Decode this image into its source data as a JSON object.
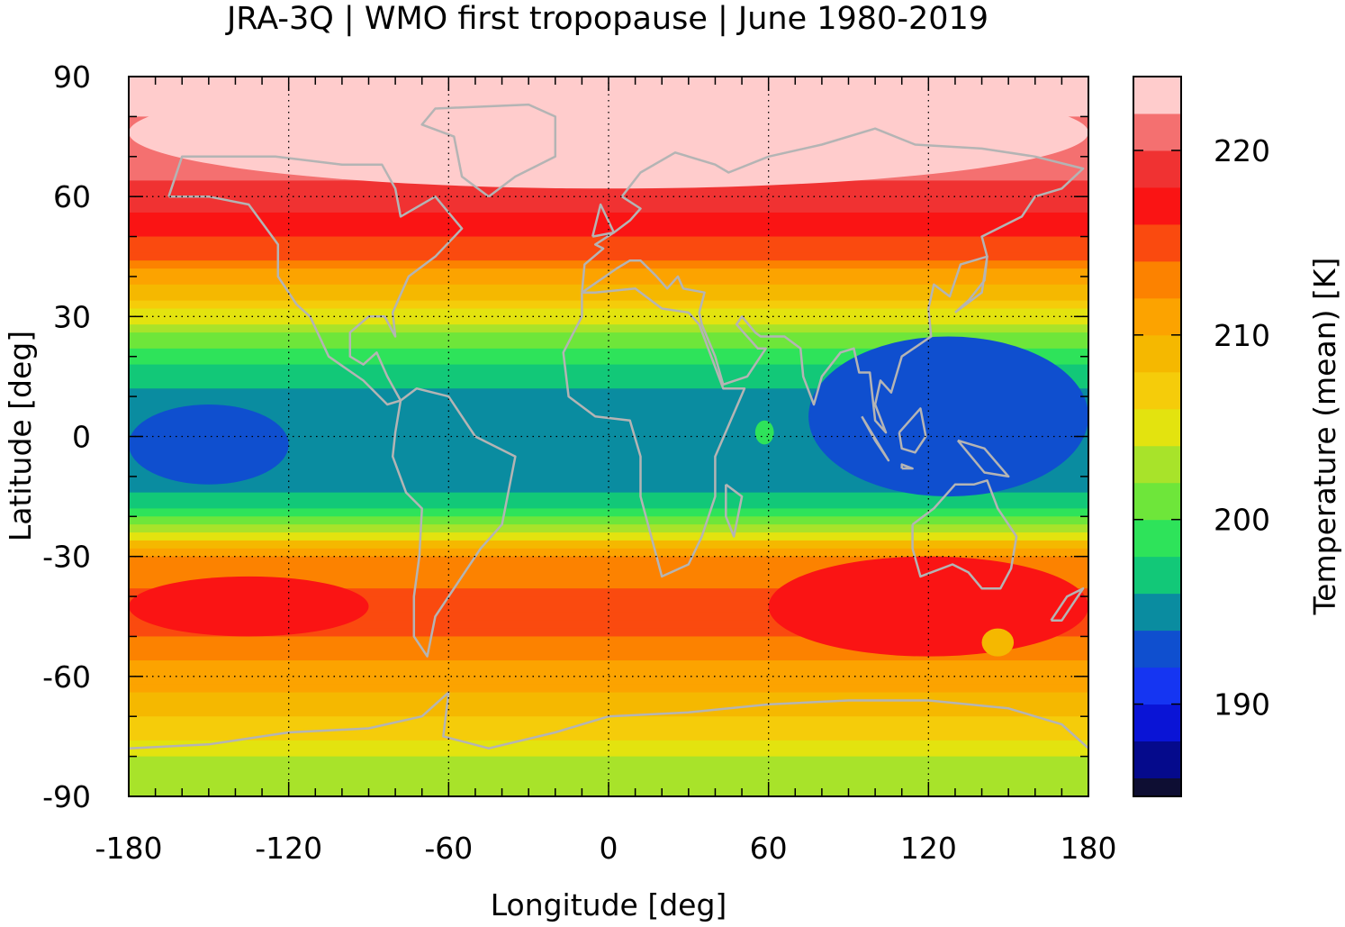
{
  "title": "JRA-3Q | WMO first tropopause | June 1980-2019",
  "chart_data": {
    "type": "heatmap",
    "title": "JRA-3Q | WMO first tropopause | June 1980-2019",
    "xlabel": "Longitude [deg]",
    "ylabel": "Latitude [deg]",
    "xlim": [
      -180,
      180
    ],
    "ylim": [
      -90,
      90
    ],
    "xticks": [
      "-180",
      "-120",
      "-60",
      "0",
      "60",
      "120",
      "180"
    ],
    "yticks": [
      "90",
      "60",
      "30",
      "0",
      "-30",
      "-60",
      "-90"
    ],
    "grid": true,
    "colorbar": {
      "label": "Temperature (mean) [K]",
      "ticks": [
        "220",
        "210",
        "200",
        "190"
      ],
      "range": [
        185,
        224
      ],
      "levels": [
        {
          "from": 185,
          "to": 186,
          "color": "#0e0e33"
        },
        {
          "from": 186,
          "to": 188,
          "color": "#050a8c"
        },
        {
          "from": 188,
          "to": 190,
          "color": "#0a14d6"
        },
        {
          "from": 190,
          "to": 192,
          "color": "#1535f2"
        },
        {
          "from": 192,
          "to": 194,
          "color": "#0f4fcf"
        },
        {
          "from": 194,
          "to": 196,
          "color": "#0a8ca0"
        },
        {
          "from": 196,
          "to": 198,
          "color": "#12c878"
        },
        {
          "from": 198,
          "to": 200,
          "color": "#2ee35a"
        },
        {
          "from": 200,
          "to": 202,
          "color": "#6ee63a"
        },
        {
          "from": 202,
          "to": 204,
          "color": "#a8e32a"
        },
        {
          "from": 204,
          "to": 206,
          "color": "#e3e30f"
        },
        {
          "from": 206,
          "to": 208,
          "color": "#f5cc0a"
        },
        {
          "from": 208,
          "to": 210,
          "color": "#f5b800"
        },
        {
          "from": 210,
          "to": 212,
          "color": "#fca300"
        },
        {
          "from": 212,
          "to": 214,
          "color": "#fc8200"
        },
        {
          "from": 214,
          "to": 216,
          "color": "#fa4a0f"
        },
        {
          "from": 216,
          "to": 218,
          "color": "#fa1414"
        },
        {
          "from": 218,
          "to": 220,
          "color": "#f03232"
        },
        {
          "from": 220,
          "to": 222,
          "color": "#f47070"
        },
        {
          "from": 222,
          "to": 224,
          "color": "#ffcccc"
        }
      ]
    },
    "zonal_mean_profile": {
      "lat": [
        90,
        70,
        60,
        52,
        45,
        40,
        35,
        30,
        25,
        20,
        15,
        10,
        0,
        -10,
        -15,
        -20,
        -25,
        -30,
        -40,
        -50,
        -60,
        -70,
        -80,
        -90
      ],
      "temp_K": [
        223,
        221,
        219,
        217,
        214,
        211,
        208.5,
        205,
        201.5,
        199,
        197,
        195,
        194,
        195,
        196.5,
        199,
        205,
        212.5,
        214.5,
        214,
        211,
        208,
        204,
        203
      ]
    },
    "features": [
      {
        "name": "Warm polar cap",
        "lon": [
          -180,
          180
        ],
        "lat": [
          62,
          90
        ],
        "temp_K": 223
      },
      {
        "name": "Cold Asian monsoon/warm-pool minimum",
        "lon": [
          75,
          180
        ],
        "lat": [
          -15,
          25
        ],
        "temp_K": 193
      },
      {
        "name": "Cold central Pacific equatorial band",
        "lon": [
          -180,
          -120
        ],
        "lat": [
          -12,
          8
        ],
        "temp_K": 193
      },
      {
        "name": "Warm cell over Arabian Sea",
        "lon": [
          55,
          62
        ],
        "lat": [
          -2,
          4
        ],
        "temp_K": 199
      },
      {
        "name": "Warm southern Pacific cell",
        "lon": [
          -180,
          -90
        ],
        "lat": [
          -50,
          -35
        ],
        "temp_K": 217
      },
      {
        "name": "Warm southern Indian Ocean/Australia cell",
        "lon": [
          60,
          180
        ],
        "lat": [
          -55,
          -30
        ],
        "temp_K": 217
      },
      {
        "name": "Cooler patch south of Australia",
        "lon": [
          140,
          152
        ],
        "lat": [
          -55,
          -48
        ],
        "temp_K": 209
      }
    ]
  }
}
